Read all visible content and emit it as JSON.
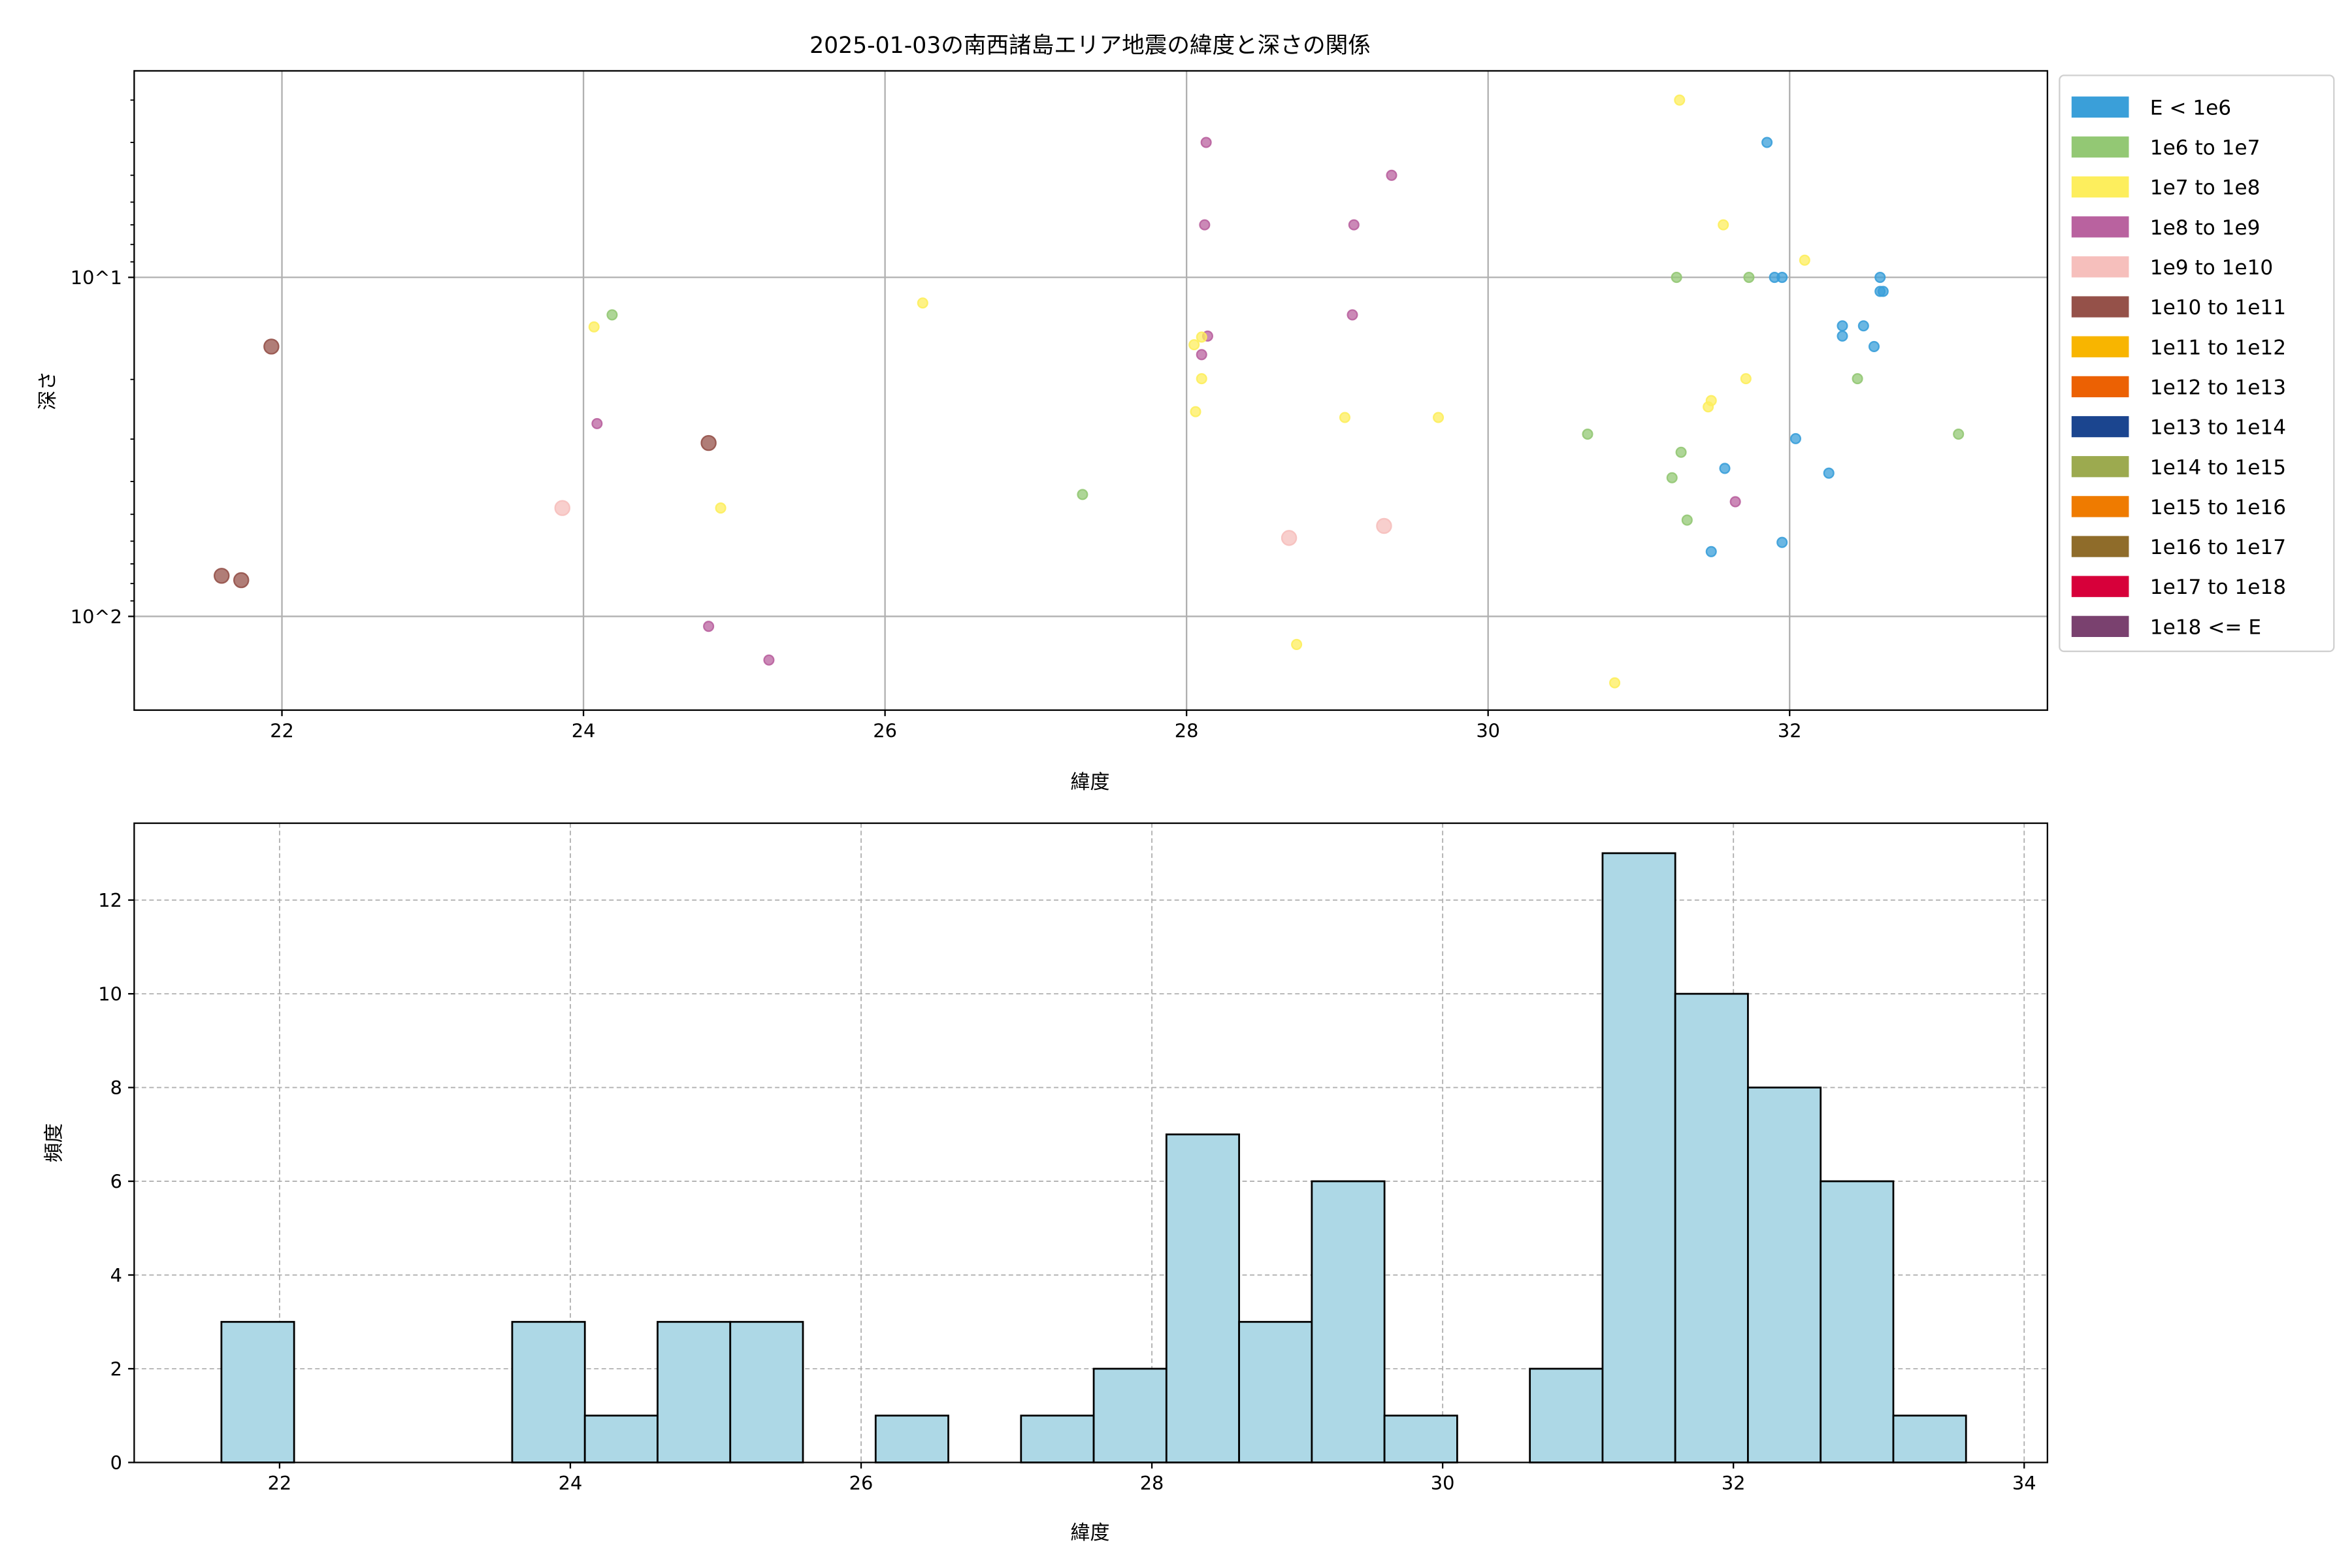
{
  "chart_data": [
    {
      "type": "scatter",
      "title": "2025-01-03の南西諸島エリア地震の緯度と深さの関係",
      "xlabel": "緯度",
      "ylabel": "深さ",
      "xlim": [
        21.02,
        33.71
      ],
      "ylim": [
        2.46,
        189
      ],
      "yscale": "log",
      "y_inverted": true,
      "grid": true,
      "xticks": [
        22,
        24,
        26,
        28,
        30,
        32
      ],
      "yticks": [
        {
          "value": 10,
          "label": "10^1"
        },
        {
          "value": 100,
          "label": "10^2"
        }
      ],
      "legend_placement": "outside-right",
      "legend": [
        {
          "label": "E < 1e6",
          "color": "#3a9fd9"
        },
        {
          "label": "1e6 to 1e7",
          "color": "#93c874"
        },
        {
          "label": "1e7 to 1e8",
          "color": "#fdee5d"
        },
        {
          "label": "1e8 to 1e9",
          "color": "#b9629f"
        },
        {
          "label": "1e9 to 1e10",
          "color": "#f6bfbc"
        },
        {
          "label": "1e10 to 1e11",
          "color": "#955149"
        },
        {
          "label": "1e11 to 1e12",
          "color": "#f8b500"
        },
        {
          "label": "1e12 to 1e13",
          "color": "#ec6103"
        },
        {
          "label": "1e13 to 1e14",
          "color": "#1b458f"
        },
        {
          "label": "1e14 to 1e15",
          "color": "#9caa4f"
        },
        {
          "label": "1e15 to 1e16",
          "color": "#ef7b00"
        },
        {
          "label": "1e16 to 1e17",
          "color": "#8f6c2a"
        },
        {
          "label": "1e17 to 1e18",
          "color": "#d7003a"
        },
        {
          "label": "1e18 <= E",
          "color": "#7a416f"
        }
      ],
      "points": [
        {
          "class": 5,
          "x": 21.93,
          "y": 16.0
        },
        {
          "class": 5,
          "x": 21.6,
          "y": 75.9
        },
        {
          "class": 5,
          "x": 21.73,
          "y": 78.2
        },
        {
          "class": 5,
          "x": 24.83,
          "y": 30.8
        },
        {
          "class": 3,
          "x": 28.13,
          "y": 4.0
        },
        {
          "class": 3,
          "x": 28.12,
          "y": 7.0
        },
        {
          "class": 3,
          "x": 29.36,
          "y": 5.0
        },
        {
          "class": 3,
          "x": 29.11,
          "y": 7.0
        },
        {
          "class": 3,
          "x": 29.1,
          "y": 12.9
        },
        {
          "class": 3,
          "x": 28.14,
          "y": 14.9
        },
        {
          "class": 3,
          "x": 28.1,
          "y": 16.9
        },
        {
          "class": 3,
          "x": 24.09,
          "y": 27.0
        },
        {
          "class": 3,
          "x": 24.83,
          "y": 107
        },
        {
          "class": 3,
          "x": 25.23,
          "y": 134.5
        },
        {
          "class": 3,
          "x": 31.64,
          "y": 45.9
        },
        {
          "class": 4,
          "x": 23.86,
          "y": 47.9
        },
        {
          "class": 4,
          "x": 28.68,
          "y": 58.7
        },
        {
          "class": 4,
          "x": 29.31,
          "y": 54.1
        },
        {
          "class": 2,
          "x": 31.27,
          "y": 3.0
        },
        {
          "class": 2,
          "x": 31.56,
          "y": 7.0
        },
        {
          "class": 2,
          "x": 32.1,
          "y": 8.9
        },
        {
          "class": 2,
          "x": 26.25,
          "y": 11.9
        },
        {
          "class": 2,
          "x": 24.07,
          "y": 14.0
        },
        {
          "class": 2,
          "x": 28.05,
          "y": 15.8
        },
        {
          "class": 2,
          "x": 28.1,
          "y": 15.0
        },
        {
          "class": 2,
          "x": 28.1,
          "y": 19.9
        },
        {
          "class": 2,
          "x": 28.06,
          "y": 24.9
        },
        {
          "class": 2,
          "x": 29.05,
          "y": 25.9
        },
        {
          "class": 2,
          "x": 29.67,
          "y": 25.9
        },
        {
          "class": 2,
          "x": 31.71,
          "y": 19.9
        },
        {
          "class": 2,
          "x": 31.48,
          "y": 23.1
        },
        {
          "class": 2,
          "x": 31.46,
          "y": 24.1
        },
        {
          "class": 2,
          "x": 24.91,
          "y": 47.9
        },
        {
          "class": 2,
          "x": 28.73,
          "y": 121
        },
        {
          "class": 2,
          "x": 30.84,
          "y": 157
        },
        {
          "class": 1,
          "x": 24.19,
          "y": 12.9
        },
        {
          "class": 1,
          "x": 27.31,
          "y": 43.7
        },
        {
          "class": 1,
          "x": 30.66,
          "y": 29.0
        },
        {
          "class": 1,
          "x": 31.25,
          "y": 10.0
        },
        {
          "class": 1,
          "x": 31.73,
          "y": 10.0
        },
        {
          "class": 1,
          "x": 31.28,
          "y": 32.8
        },
        {
          "class": 1,
          "x": 31.22,
          "y": 39.0
        },
        {
          "class": 1,
          "x": 31.32,
          "y": 52.0
        },
        {
          "class": 1,
          "x": 32.45,
          "y": 19.9
        },
        {
          "class": 1,
          "x": 33.12,
          "y": 29.0
        },
        {
          "class": 0,
          "x": 31.85,
          "y": 4.0
        },
        {
          "class": 0,
          "x": 31.9,
          "y": 10.0
        },
        {
          "class": 0,
          "x": 31.95,
          "y": 10.0
        },
        {
          "class": 0,
          "x": 32.6,
          "y": 10.0
        },
        {
          "class": 0,
          "x": 32.6,
          "y": 11.0
        },
        {
          "class": 0,
          "x": 32.62,
          "y": 11.0
        },
        {
          "class": 0,
          "x": 32.35,
          "y": 13.9
        },
        {
          "class": 0,
          "x": 32.49,
          "y": 13.9
        },
        {
          "class": 0,
          "x": 32.35,
          "y": 14.9
        },
        {
          "class": 0,
          "x": 32.56,
          "y": 16.0
        },
        {
          "class": 0,
          "x": 32.04,
          "y": 29.9
        },
        {
          "class": 0,
          "x": 31.57,
          "y": 36.6
        },
        {
          "class": 0,
          "x": 32.26,
          "y": 37.8
        },
        {
          "class": 0,
          "x": 31.95,
          "y": 60.5
        },
        {
          "class": 0,
          "x": 31.48,
          "y": 64.4
        }
      ]
    },
    {
      "type": "bar",
      "subtype": "histogram",
      "xlabel": "緯度",
      "ylabel": "頻度",
      "xlim": [
        21.0,
        34.16
      ],
      "ylim": [
        0,
        13.64
      ],
      "grid": true,
      "grid_style": "dashed",
      "bar_color": "#add8e6",
      "edge_color": "#000000",
      "xticks": [
        22,
        24,
        26,
        28,
        30,
        32,
        34
      ],
      "yticks": [
        0,
        2,
        4,
        6,
        8,
        10,
        12
      ],
      "bin_start": 21.6,
      "bin_width": 0.5,
      "counts": [
        3,
        0,
        0,
        0,
        3,
        1,
        3,
        3,
        0,
        1,
        0,
        1,
        2,
        7,
        3,
        6,
        1,
        0,
        2,
        13,
        10,
        8,
        6,
        1
      ]
    }
  ]
}
